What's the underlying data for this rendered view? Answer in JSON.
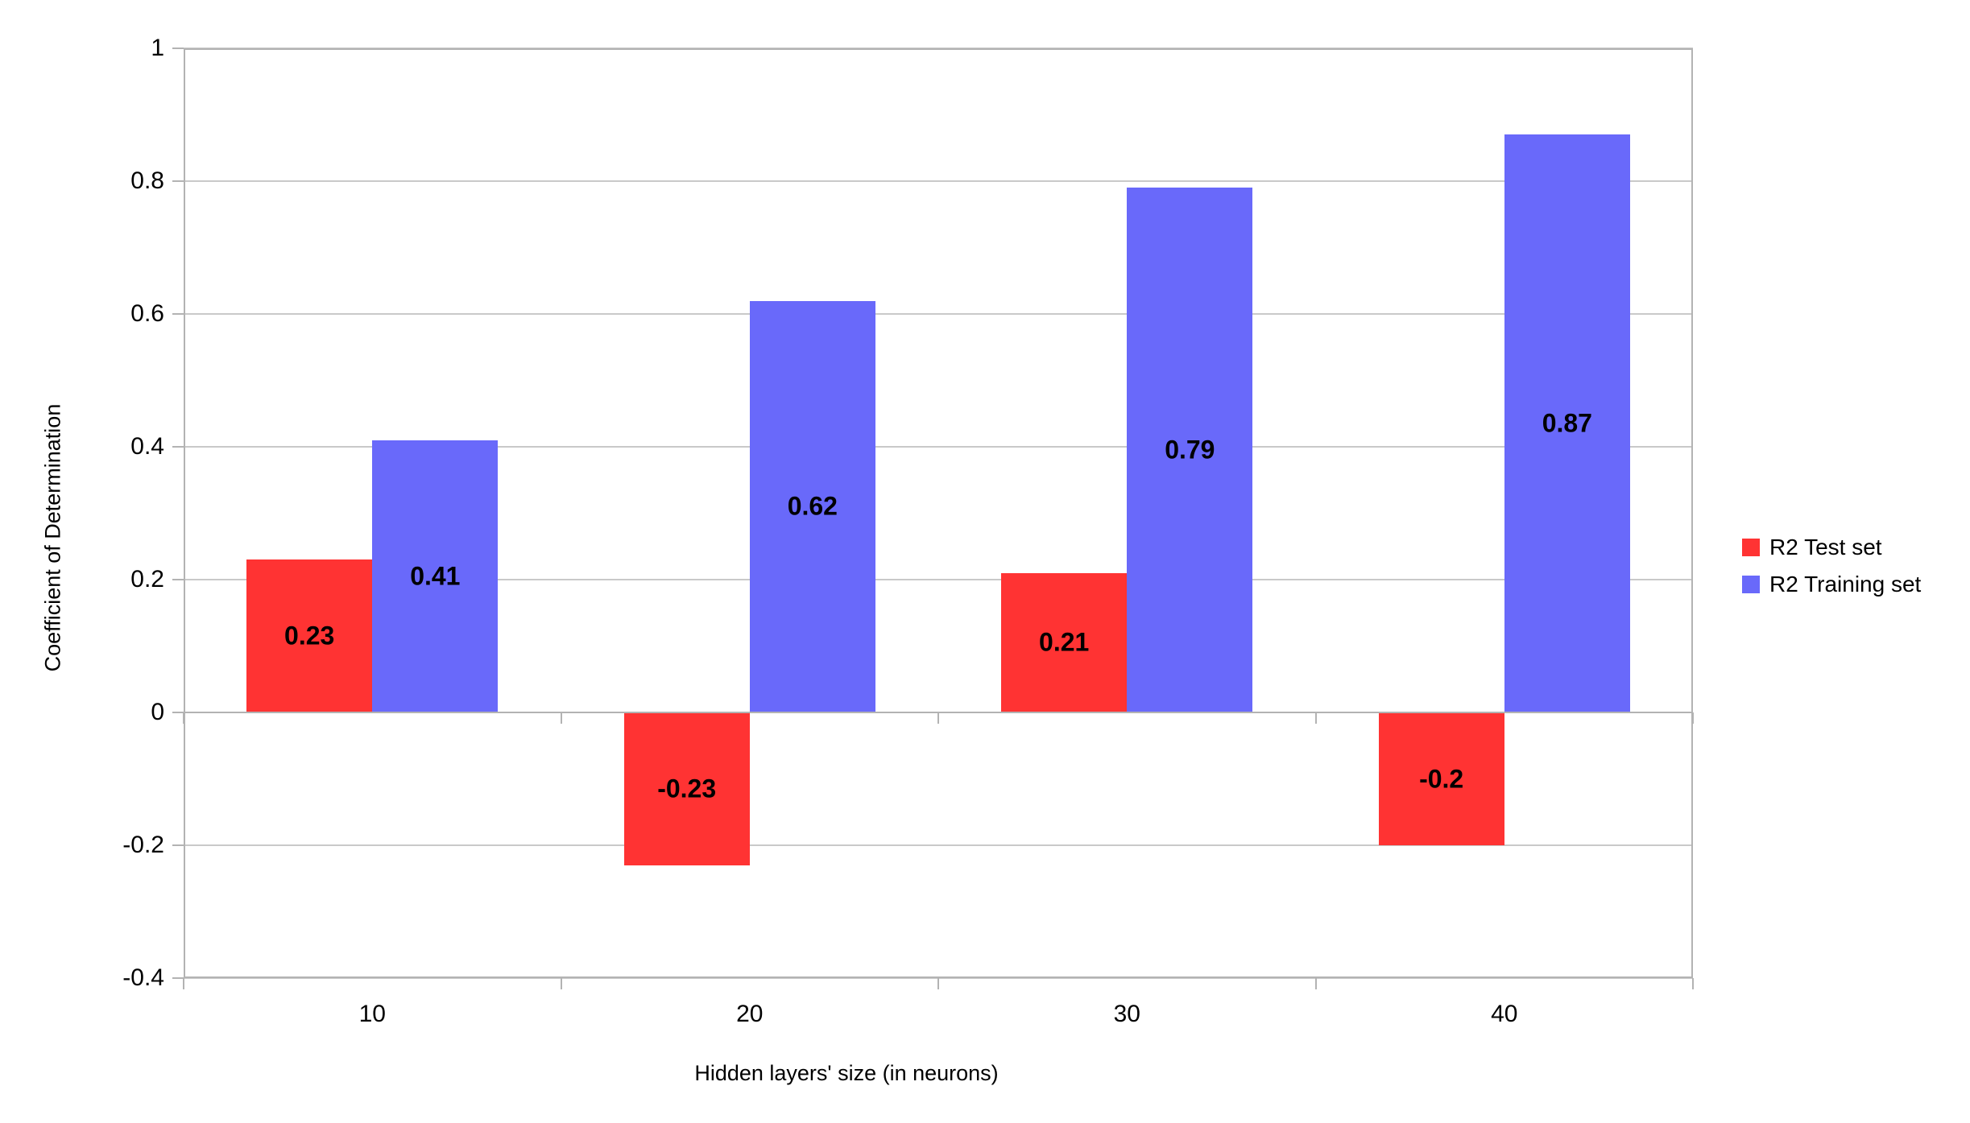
{
  "chart_data": {
    "type": "bar",
    "title": "",
    "xlabel": "Hidden layers' size (in neurons)",
    "ylabel": "Coefficient of Determination",
    "categories": [
      "10",
      "20",
      "30",
      "40"
    ],
    "series": [
      {
        "name": "R2 Test set",
        "color": "#ff3333",
        "values": [
          0.23,
          -0.23,
          0.21,
          -0.2
        ],
        "labels": [
          "0.23",
          "-0.23",
          "0.21",
          "-0.2"
        ]
      },
      {
        "name": "R2 Training set",
        "color": "#6969fa",
        "values": [
          0.41,
          0.62,
          0.79,
          0.87
        ],
        "labels": [
          "0.41",
          "0.62",
          "0.79",
          "0.87"
        ]
      }
    ],
    "ylim": [
      -0.4,
      1.0
    ],
    "y_ticks": [
      {
        "value": 1.0,
        "label": "1"
      },
      {
        "value": 0.8,
        "label": "0.8"
      },
      {
        "value": 0.6,
        "label": "0.6"
      },
      {
        "value": 0.4,
        "label": "0.4"
      },
      {
        "value": 0.2,
        "label": "0.2"
      },
      {
        "value": 0.0,
        "label": "0"
      },
      {
        "value": -0.2,
        "label": "-0.2"
      },
      {
        "value": -0.4,
        "label": "-0.4"
      }
    ],
    "grid": "horizontal",
    "legend_position": "right",
    "data_labels": "centered-in-bar",
    "colors": {
      "background": "#ffffff",
      "gridline": "#c9c9c9",
      "axis": "#b3b3b3",
      "text": "#000000"
    }
  }
}
